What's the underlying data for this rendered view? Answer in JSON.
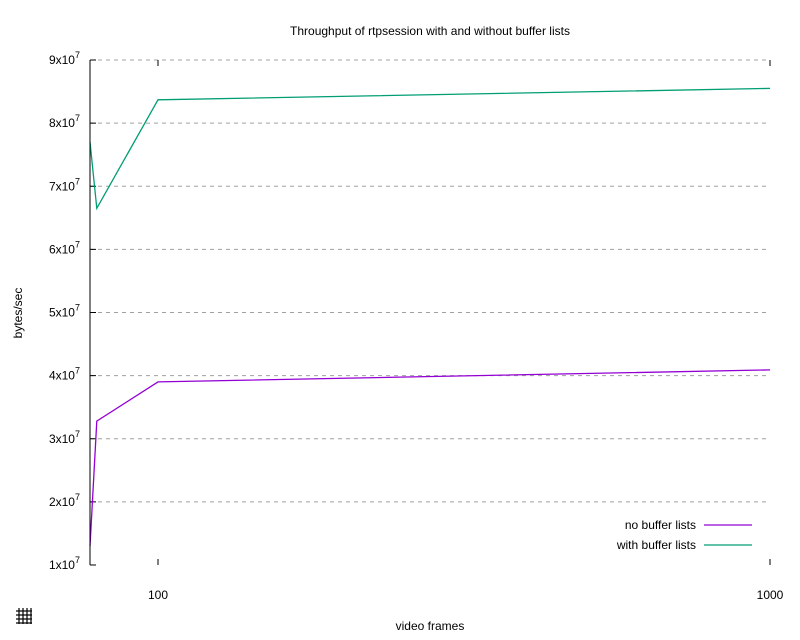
{
  "chart_data": {
    "type": "line",
    "title": "Throughput of rtpsession with and without buffer lists",
    "xlabel": "video frames",
    "ylabel": "bytes/sec",
    "x_scale": "linear",
    "xlim": [
      0,
      1000
    ],
    "ylim": [
      10000000,
      90000000
    ],
    "x_ticks": [
      100,
      1000
    ],
    "x_tick_labels": [
      "100",
      "1000"
    ],
    "y_ticks": [
      10000000,
      20000000,
      30000000,
      40000000,
      50000000,
      60000000,
      70000000,
      80000000,
      90000000
    ],
    "y_tick_labels": [
      {
        "base": "1x10",
        "exp": "7"
      },
      {
        "base": "2x10",
        "exp": "7"
      },
      {
        "base": "3x10",
        "exp": "7"
      },
      {
        "base": "4x10",
        "exp": "7"
      },
      {
        "base": "5x10",
        "exp": "7"
      },
      {
        "base": "6x10",
        "exp": "7"
      },
      {
        "base": "7x10",
        "exp": "7"
      },
      {
        "base": "8x10",
        "exp": "7"
      },
      {
        "base": "9x10",
        "exp": "7"
      }
    ],
    "grid": "horizontal dashed",
    "legend_position": "bottom-right",
    "series": [
      {
        "name": "no buffer lists",
        "color": "#9400d3",
        "points": [
          [
            0,
            13000000
          ],
          [
            10,
            32800000
          ],
          [
            100,
            39000000
          ],
          [
            1000,
            40900000
          ]
        ]
      },
      {
        "name": "with buffer lists",
        "color": "#009e73",
        "points": [
          [
            0,
            77000000
          ],
          [
            10,
            66500000
          ],
          [
            100,
            83700000
          ],
          [
            1000,
            85500000
          ]
        ]
      }
    ]
  },
  "toolbar": {
    "grid_icon": "grid-icon"
  }
}
